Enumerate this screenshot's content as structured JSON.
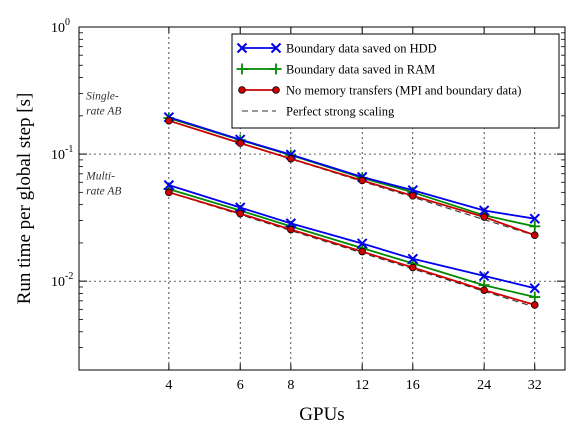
{
  "chart_data": {
    "type": "line",
    "xscale": "log",
    "yscale": "log",
    "x": [
      4,
      6,
      8,
      12,
      16,
      24,
      32
    ],
    "xticks": [
      "4",
      "6",
      "8",
      "12",
      "16",
      "24",
      "32"
    ],
    "xlim": [
      2.4,
      38
    ],
    "ylim": [
      0.002,
      1
    ],
    "yticks": [
      {
        "base": "10",
        "exp": "0",
        "value": 1
      },
      {
        "base": "10",
        "exp": "-1",
        "value": 0.1
      },
      {
        "base": "10",
        "exp": "-2",
        "value": 0.01
      }
    ],
    "xlabel": "GPUs",
    "ylabel": "Run time per global step [s]",
    "grid": true,
    "legend_position": "top-right",
    "annotations": [
      {
        "text": "Single-",
        "x": 2.5,
        "y": 0.27
      },
      {
        "text": "rate AB",
        "x": 2.5,
        "y": 0.205
      },
      {
        "text": "Multi-",
        "x": 2.5,
        "y": 0.063
      },
      {
        "text": "rate AB",
        "x": 2.5,
        "y": 0.048
      }
    ],
    "series": [
      {
        "name": "Boundary data saved on HDD",
        "color": "#0000ee",
        "marker": "x",
        "style": "solid",
        "groups": [
          [
            0.195,
            0.13,
            0.099,
            0.066,
            0.052,
            0.036,
            0.031
          ],
          [
            0.057,
            0.038,
            0.0285,
            0.0198,
            0.015,
            0.011,
            0.0088
          ]
        ]
      },
      {
        "name": "Boundary data saved in RAM",
        "color": "#008a00",
        "marker": "plus",
        "style": "solid",
        "groups": [
          [
            0.192,
            0.129,
            0.098,
            0.065,
            0.05,
            0.033,
            0.027
          ],
          [
            0.053,
            0.036,
            0.027,
            0.0182,
            0.0138,
            0.0093,
            0.0075
          ]
        ]
      },
      {
        "name": "No memory transfers (MPI and boundary data)",
        "color": "#cc0000",
        "marker": "circle",
        "style": "solid",
        "groups": [
          [
            0.183,
            0.122,
            0.092,
            0.062,
            0.047,
            0.032,
            0.023
          ],
          [
            0.05,
            0.034,
            0.0255,
            0.0171,
            0.0128,
            0.0085,
            0.0065
          ]
        ]
      },
      {
        "name": "Perfect strong scaling",
        "color": "#333333",
        "marker": "none",
        "style": "dashed",
        "groups": [
          [
            0.183,
            0.122,
            0.0915,
            0.061,
            0.04575,
            0.0305,
            0.022875
          ],
          [
            0.05,
            0.03333,
            0.025,
            0.01667,
            0.0125,
            0.00833,
            0.00625
          ]
        ]
      }
    ]
  }
}
